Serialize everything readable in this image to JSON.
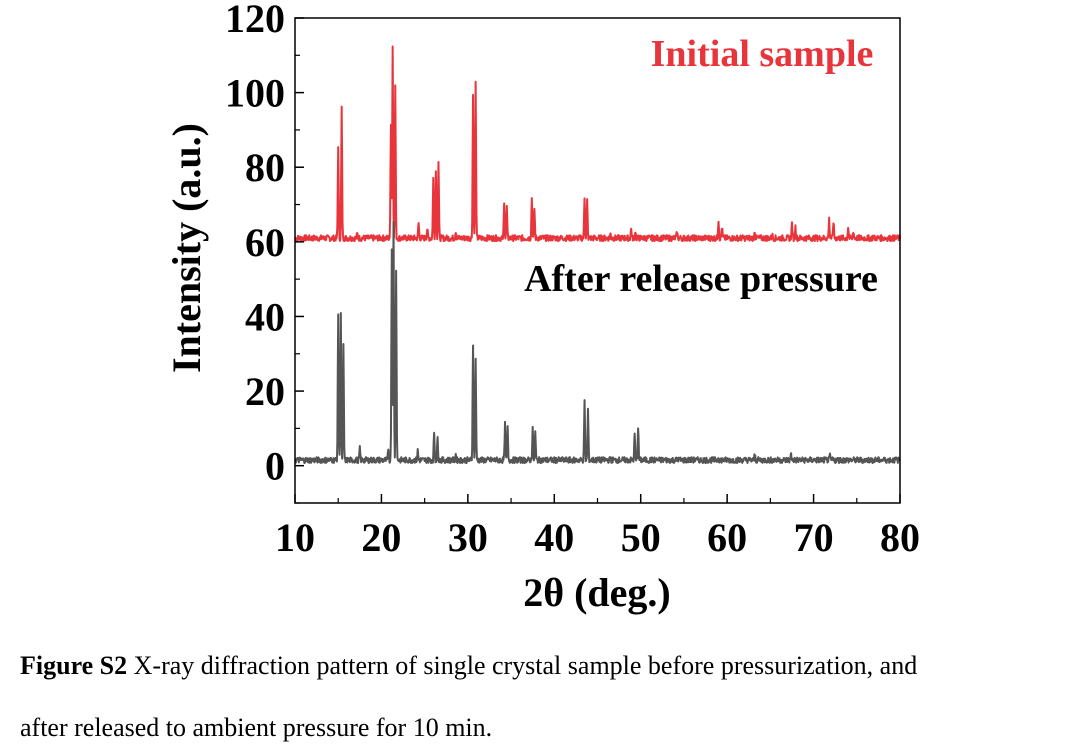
{
  "chart_data": {
    "type": "line",
    "xlabel": "2θ (deg.)",
    "ylabel": "Intensity (a.u.)",
    "xlim": [
      10,
      80
    ],
    "ylim": [
      -10,
      120
    ],
    "x_ticks": [
      10,
      20,
      30,
      40,
      50,
      60,
      70,
      80
    ],
    "y_ticks": [
      0,
      20,
      40,
      60,
      80,
      100,
      120
    ],
    "grid": false,
    "legend": "none",
    "baseline_x_range": [
      10,
      80
    ],
    "series": [
      {
        "name": "Initial sample",
        "color": "#e8353b",
        "baseline": 61,
        "peaks": [
          [
            15.0,
            86
          ],
          [
            15.4,
            96
          ],
          [
            17.2,
            62
          ],
          [
            21.1,
            92
          ],
          [
            21.3,
            112.5
          ],
          [
            21.6,
            102
          ],
          [
            24.3,
            65
          ],
          [
            25.3,
            63.5
          ],
          [
            26.0,
            77
          ],
          [
            26.3,
            79
          ],
          [
            26.6,
            81.5
          ],
          [
            28.6,
            63
          ],
          [
            30.6,
            99.5
          ],
          [
            30.9,
            102.5
          ],
          [
            34.2,
            70
          ],
          [
            34.5,
            69.5
          ],
          [
            37.4,
            72
          ],
          [
            37.7,
            69
          ],
          [
            43.5,
            72
          ],
          [
            43.8,
            71
          ],
          [
            46.5,
            62
          ],
          [
            48.9,
            63.5
          ],
          [
            49.4,
            63
          ],
          [
            54.2,
            62.5
          ],
          [
            59.0,
            66
          ],
          [
            59.4,
            64
          ],
          [
            63.2,
            63
          ],
          [
            65.2,
            62
          ],
          [
            67.5,
            65
          ],
          [
            67.9,
            64
          ],
          [
            71.8,
            66
          ],
          [
            72.3,
            65.5
          ],
          [
            74.0,
            64
          ],
          [
            74.6,
            63
          ],
          [
            76.9,
            61.5
          ]
        ]
      },
      {
        "name": "After release pressure",
        "color": "#555555",
        "baseline": 1.5,
        "peaks": [
          [
            15.0,
            41
          ],
          [
            15.3,
            41
          ],
          [
            15.6,
            32
          ],
          [
            17.5,
            4.5
          ],
          [
            20.8,
            4
          ],
          [
            21.2,
            58
          ],
          [
            21.4,
            65
          ],
          [
            21.7,
            53
          ],
          [
            24.2,
            4
          ],
          [
            26.1,
            9
          ],
          [
            26.5,
            7.5
          ],
          [
            28.6,
            3
          ],
          [
            30.6,
            33
          ],
          [
            30.9,
            29
          ],
          [
            34.3,
            11
          ],
          [
            34.6,
            10
          ],
          [
            37.5,
            10.5
          ],
          [
            37.8,
            9
          ],
          [
            43.5,
            17
          ],
          [
            43.9,
            15
          ],
          [
            46.5,
            2
          ],
          [
            49.3,
            8.5
          ],
          [
            49.7,
            10.5
          ],
          [
            54.3,
            2
          ],
          [
            59.0,
            2.5
          ],
          [
            63.2,
            3
          ],
          [
            67.4,
            3
          ],
          [
            71.9,
            2.5
          ],
          [
            76.5,
            1.5
          ]
        ]
      }
    ],
    "annotations": [
      {
        "text": "Initial sample",
        "color": "#e8353b"
      },
      {
        "text": "After release pressure",
        "color": "#000000"
      }
    ]
  },
  "caption": {
    "label": "Figure S2",
    "line1_text": " X-ray diffraction pattern of single crystal sample before pressurization, and",
    "line2_text": "after released to ambient pressure for 10 min."
  }
}
